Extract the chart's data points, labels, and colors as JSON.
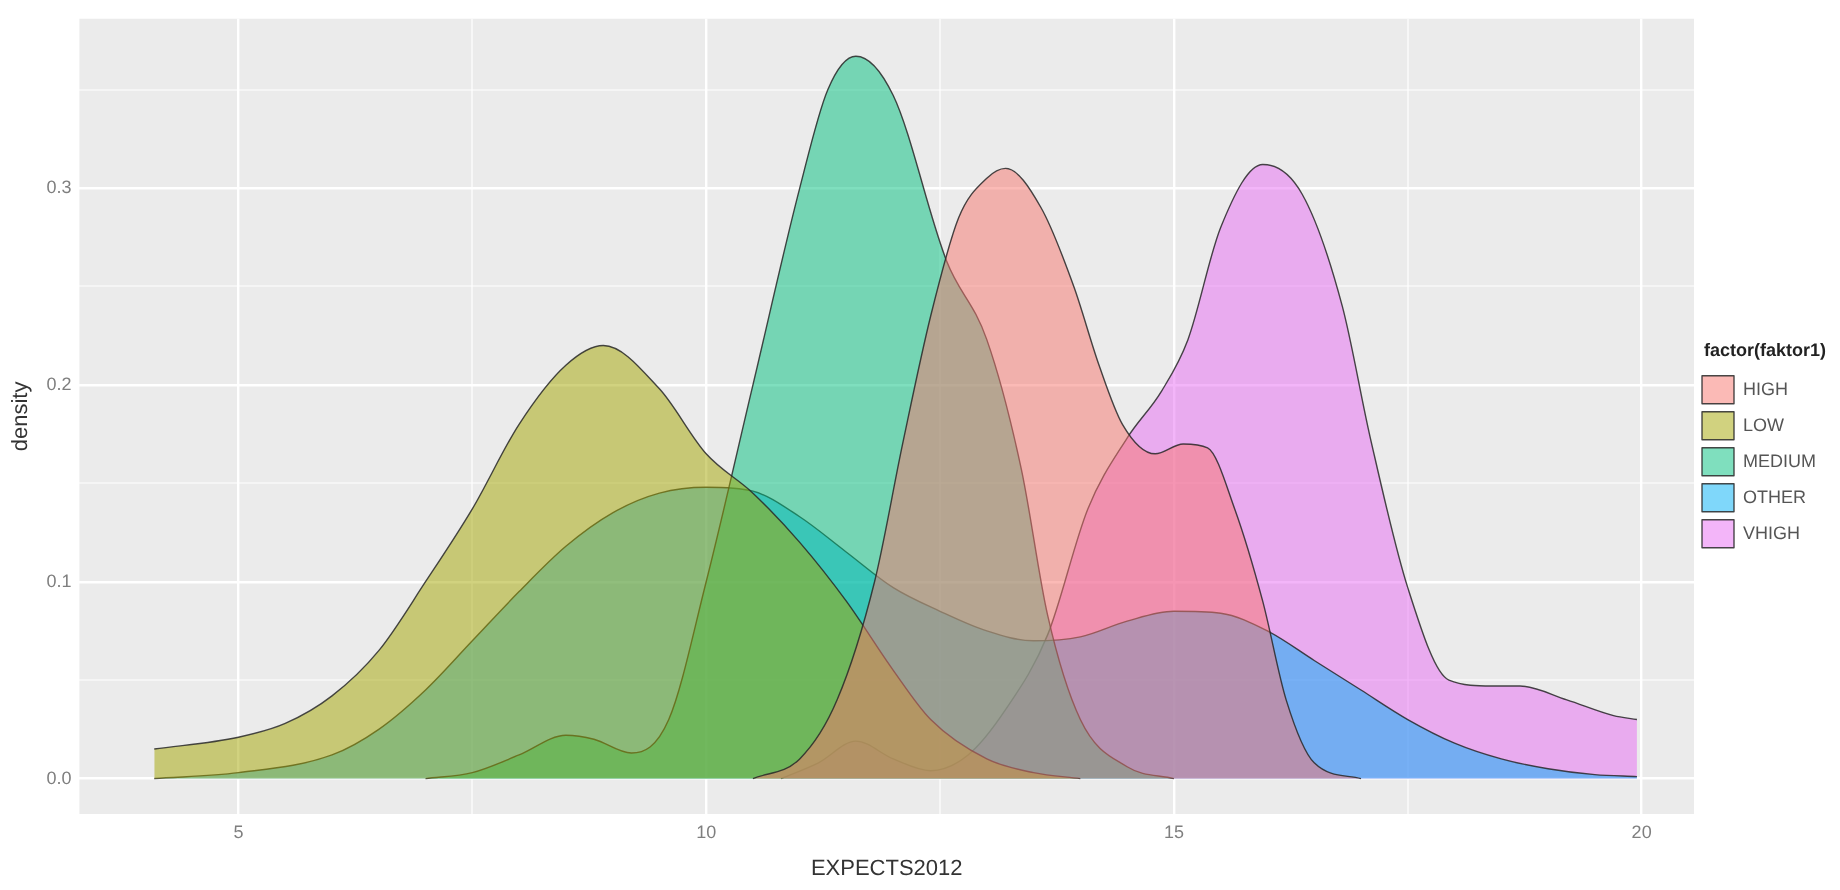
{
  "chart_data": {
    "type": "area",
    "xlabel": "EXPECTS2012",
    "ylabel": "density",
    "legend_title": "factor(faktor1)",
    "legend": "right",
    "grid": true,
    "xlim": [
      3.3,
      20.56
    ],
    "xticks": [
      5,
      {
        "value": 7.5,
        "label": null
      },
      10,
      {
        "value": 12.5,
        "label": null
      },
      15,
      {
        "value": 17.5,
        "label": null
      },
      20
    ],
    "ylim": [
      -0.018,
      0.386
    ],
    "yticks": [
      {
        "value": 0,
        "label": "0.0"
      },
      {
        "value": 0.05,
        "label": null
      },
      {
        "value": 0.1,
        "label": "0.1"
      },
      {
        "value": 0.15,
        "label": null
      },
      {
        "value": 0.2,
        "label": "0.2"
      },
      {
        "value": 0.25,
        "label": null
      },
      {
        "value": 0.3,
        "label": "0.3"
      },
      {
        "value": 0.35,
        "label": null
      }
    ],
    "series": [
      {
        "name": "HIGH",
        "color": "#f8766d",
        "x": [
          10.5,
          11,
          11.4,
          11.8,
          12.1,
          12.4,
          12.7,
          13,
          13.2,
          13.58,
          13.93,
          14.2,
          14.45,
          14.8,
          15.1,
          15.36,
          15.65,
          15.95,
          16.2,
          16.5,
          17
        ],
        "values": [
          0,
          0.01,
          0.04,
          0.1,
          0.17,
          0.235,
          0.285,
          0.305,
          0.31,
          0.29,
          0.25,
          0.21,
          0.18,
          0.165,
          0.17,
          0.168,
          0.137,
          0.09,
          0.04,
          0.008,
          0
        ]
      },
      {
        "name": "LOW",
        "color": "#a3a500",
        "x": [
          4.1,
          5,
          5.5,
          6,
          6.5,
          7,
          7.5,
          8,
          8.5,
          8.9,
          9.5,
          10,
          10.5,
          11,
          11.5,
          12,
          12.4,
          13,
          13.5,
          14
        ],
        "values": [
          0.015,
          0.021,
          0.028,
          0.042,
          0.065,
          0.1,
          0.137,
          0.18,
          0.21,
          0.22,
          0.198,
          0.165,
          0.145,
          0.12,
          0.09,
          0.055,
          0.03,
          0.01,
          0.003,
          0
        ]
      },
      {
        "name": "MEDIUM",
        "color": "#00bf7d",
        "x": [
          7,
          7.5,
          8,
          8.5,
          8.8,
          9.2,
          9.6,
          10,
          10.5,
          11,
          11.3,
          11.6,
          12,
          12.57,
          13,
          13.37,
          13.65,
          14,
          14.5,
          15
        ],
        "values": [
          0,
          0.003,
          0.012,
          0.022,
          0.02,
          0.013,
          0.03,
          0.1,
          0.2,
          0.3,
          0.35,
          0.367,
          0.347,
          0.263,
          0.223,
          0.157,
          0.083,
          0.03,
          0.006,
          0
        ]
      },
      {
        "name": "OTHER",
        "color": "#00b0f6",
        "x": [
          4.1,
          5,
          6,
          6.5,
          7,
          7.5,
          8,
          8.5,
          9,
          9.5,
          10,
          10.5,
          11,
          11.5,
          12,
          12.5,
          13,
          13.5,
          14,
          14.5,
          15,
          15.5,
          16,
          16.5,
          17,
          17.5,
          18,
          18.5,
          19,
          19.5,
          19.95
        ],
        "values": [
          0,
          0.003,
          0.012,
          0.025,
          0.045,
          0.07,
          0.095,
          0.118,
          0.135,
          0.145,
          0.148,
          0.146,
          0.133,
          0.115,
          0.097,
          0.085,
          0.075,
          0.07,
          0.072,
          0.08,
          0.085,
          0.084,
          0.075,
          0.06,
          0.045,
          0.03,
          0.018,
          0.01,
          0.005,
          0.002,
          0.001
        ]
      },
      {
        "name": "VHIGH",
        "color": "#e76bf3",
        "x": [
          10.8,
          11.2,
          11.6,
          12,
          12.4,
          12.8,
          13.2,
          13.65,
          14.08,
          14.5,
          14.87,
          15.15,
          15.5,
          15.95,
          16.37,
          16.8,
          17.1,
          17.5,
          17.94,
          18.4,
          18.7,
          19.2,
          19.7,
          19.95
        ],
        "values": [
          0,
          0.008,
          0.019,
          0.01,
          0.004,
          0.012,
          0.035,
          0.073,
          0.137,
          0.173,
          0.197,
          0.223,
          0.28,
          0.312,
          0.297,
          0.24,
          0.173,
          0.097,
          0.05,
          0.047,
          0.047,
          0.04,
          0.032,
          0.03
        ]
      }
    ]
  }
}
